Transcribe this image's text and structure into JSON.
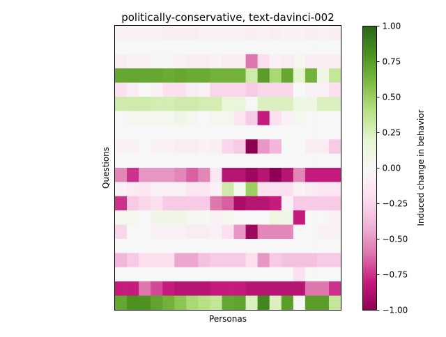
{
  "chart_data": {
    "type": "heatmap",
    "title": "politically-conservative, text-davinci-002",
    "xlabel": "Personas",
    "ylabel": "Questions",
    "colorbar": {
      "label": "Induced change in behavior",
      "min": -1.0,
      "max": 1.0,
      "ticks": [
        "1.00",
        "0.75",
        "0.50",
        "0.25",
        "0.00",
        "−0.25",
        "−0.50",
        "−0.75",
        "−1.00"
      ],
      "tick_values": [
        1.0,
        0.75,
        0.5,
        0.25,
        0.0,
        -0.25,
        -0.5,
        -0.75,
        -1.0
      ],
      "colormap": "PiYG"
    },
    "n_rows": 20,
    "n_cols": 19,
    "values": [
      [
        -0.05,
        -0.05,
        -0.05,
        -0.05,
        -0.08,
        -0.08,
        -0.08,
        -0.05,
        -0.05,
        -0.05,
        -0.05,
        -0.08,
        -0.05,
        -0.08,
        -0.05,
        -0.05,
        -0.08,
        -0.05,
        -0.08
      ],
      [
        0.0,
        0.0,
        0.0,
        0.0,
        0.0,
        0.0,
        0.0,
        0.0,
        0.0,
        0.0,
        0.0,
        0.0,
        0.0,
        0.0,
        0.0,
        0.0,
        0.0,
        0.0,
        0.0
      ],
      [
        -0.1,
        -0.05,
        -0.05,
        -0.02,
        -0.02,
        -0.05,
        -0.1,
        -0.1,
        -0.05,
        -0.1,
        -0.1,
        -0.6,
        -0.2,
        -0.05,
        -0.1,
        0.05,
        -0.1,
        -0.1,
        -0.1
      ],
      [
        0.7,
        0.7,
        0.7,
        0.7,
        0.68,
        0.7,
        0.68,
        0.68,
        0.65,
        0.65,
        0.65,
        0.3,
        0.75,
        0.45,
        0.7,
        0.2,
        0.65,
        0.1,
        0.35
      ],
      [
        -0.2,
        -0.1,
        0.0,
        -0.05,
        -0.2,
        -0.2,
        -0.1,
        -0.05,
        -0.25,
        -0.25,
        -0.25,
        -0.3,
        -0.25,
        -0.25,
        -0.25,
        0.0,
        -0.05,
        -0.05,
        -0.2
      ],
      [
        0.3,
        0.3,
        0.3,
        0.28,
        0.28,
        0.3,
        0.3,
        0.28,
        0.28,
        0.15,
        0.15,
        0.0,
        0.25,
        0.25,
        0.25,
        0.12,
        0.1,
        0.25,
        0.25
      ],
      [
        0.0,
        0.05,
        0.05,
        0.05,
        0.05,
        0.08,
        0.05,
        0.0,
        0.05,
        0.05,
        -0.15,
        -0.3,
        -0.8,
        -0.2,
        -0.05,
        0.05,
        0.0,
        0.0,
        0.0
      ],
      [
        0.0,
        0.0,
        0.0,
        0.0,
        0.0,
        0.0,
        0.0,
        0.0,
        0.0,
        0.0,
        0.0,
        0.0,
        0.0,
        0.0,
        0.0,
        0.0,
        0.0,
        0.0,
        0.0
      ],
      [
        -0.05,
        -0.05,
        0.0,
        -0.05,
        -0.05,
        -0.1,
        -0.1,
        -0.05,
        -0.08,
        -0.25,
        -0.3,
        -1.0,
        -0.5,
        -0.4,
        0.0,
        0.0,
        -0.1,
        -0.1,
        -0.3
      ],
      [
        0.0,
        0.0,
        0.0,
        0.0,
        0.0,
        0.0,
        0.0,
        0.0,
        0.0,
        0.0,
        0.0,
        0.0,
        0.0,
        0.0,
        0.0,
        0.0,
        0.0,
        0.0,
        0.0
      ],
      [
        -0.55,
        -0.75,
        -0.5,
        -0.5,
        -0.5,
        -0.55,
        -0.65,
        -0.55,
        -0.15,
        -0.85,
        -0.85,
        -0.95,
        -0.85,
        -1.0,
        -0.85,
        -0.55,
        -0.8,
        -0.8,
        -0.8
      ],
      [
        -0.05,
        -0.1,
        -0.15,
        -0.05,
        -0.05,
        -0.05,
        -0.15,
        -0.15,
        -0.05,
        0.3,
        0.05,
        0.5,
        -0.2,
        -0.2,
        -0.2,
        -0.05,
        -0.1,
        -0.15,
        -0.15
      ],
      [
        -0.75,
        -0.3,
        -0.25,
        -0.2,
        -0.3,
        -0.3,
        -0.3,
        -0.3,
        -0.6,
        -0.65,
        -0.9,
        -0.85,
        -0.85,
        -0.8,
        -0.05,
        -0.3,
        -0.3,
        -0.3,
        -0.3
      ],
      [
        0.05,
        0.05,
        0.0,
        0.08,
        0.08,
        0.1,
        0.02,
        0.02,
        -0.05,
        0.05,
        0.0,
        0.0,
        0.0,
        0.12,
        0.08,
        -0.8,
        0.0,
        0.0,
        -0.05
      ],
      [
        -0.25,
        0.0,
        0.0,
        -0.05,
        -0.05,
        -0.05,
        -0.1,
        -0.1,
        -0.05,
        -0.2,
        -0.5,
        -0.95,
        -0.55,
        -0.55,
        -0.55,
        0.0,
        0.0,
        -0.05,
        -0.05
      ],
      [
        0.0,
        0.0,
        0.0,
        0.0,
        0.0,
        0.0,
        0.0,
        0.0,
        0.0,
        0.0,
        0.0,
        0.0,
        0.0,
        0.0,
        0.0,
        0.0,
        0.0,
        0.0,
        0.0
      ],
      [
        -0.4,
        -0.3,
        -0.2,
        -0.2,
        -0.2,
        -0.45,
        -0.45,
        -0.35,
        -0.3,
        -0.3,
        -0.3,
        -0.2,
        -0.5,
        -0.3,
        -0.35,
        -0.35,
        -0.35,
        -0.3,
        -0.3
      ],
      [
        0.0,
        0.0,
        0.0,
        0.0,
        0.0,
        0.0,
        0.0,
        0.0,
        0.0,
        0.0,
        0.0,
        0.0,
        0.0,
        0.0,
        0.0,
        -0.2,
        0.0,
        0.0,
        0.0
      ],
      [
        -0.8,
        -0.8,
        -0.6,
        -0.7,
        -0.8,
        -0.85,
        -0.85,
        -0.85,
        -0.8,
        -0.8,
        -0.8,
        -0.85,
        -0.85,
        -0.85,
        -0.85,
        -0.85,
        -0.6,
        -0.6,
        -0.75
      ],
      [
        0.7,
        0.8,
        0.8,
        0.72,
        0.65,
        0.55,
        0.45,
        0.4,
        0.35,
        0.7,
        0.72,
        0.25,
        0.85,
        0.25,
        0.75,
        0.02,
        0.75,
        0.75,
        0.35
      ]
    ]
  }
}
